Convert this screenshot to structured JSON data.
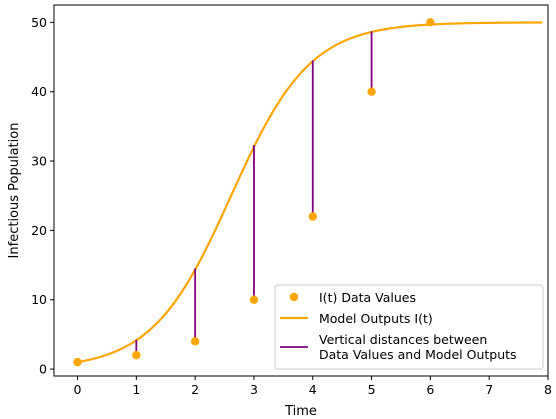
{
  "chart_data": {
    "type": "line",
    "xlabel": "Time",
    "ylabel": "Infectious Population",
    "xlim": [
      -0.4,
      8.0
    ],
    "ylim": [
      -1.0,
      52.5
    ],
    "x_ticks": [
      0,
      1,
      2,
      3,
      4,
      5,
      6,
      7,
      8
    ],
    "y_ticks": [
      0,
      10,
      20,
      30,
      40,
      50
    ],
    "grid": false,
    "legend_position": "lower-right",
    "colors": {
      "data": "#ffa500",
      "model": "#ffa500",
      "residual": "#800080"
    },
    "model": {
      "name": "Model Outputs I(t)",
      "capacity": 50,
      "initial": 1,
      "rate": 1.49,
      "t_range": [
        0,
        7.9
      ]
    },
    "series": [
      {
        "name": "I(t) Data Values",
        "kind": "scatter",
        "x": [
          0,
          1,
          2,
          3,
          4,
          5,
          6
        ],
        "y": [
          1,
          2,
          4,
          10,
          22,
          40,
          50
        ]
      },
      {
        "name": "Vertical distances between\nData Values and Model Outputs",
        "kind": "vlines",
        "x": [
          0,
          1,
          2,
          3,
          4,
          5,
          6
        ],
        "y_data": [
          1,
          2,
          4,
          10,
          22,
          40,
          50
        ],
        "y_model": [
          1.0,
          4.2,
          14.5,
          32.3,
          44.5,
          48.7,
          49.7
        ]
      }
    ],
    "legend": [
      {
        "label": "I(t) Data Values",
        "kind": "marker"
      },
      {
        "label": "Model Outputs I(t)",
        "kind": "line"
      },
      {
        "label": "Vertical distances between",
        "label2": "Data Values and Model Outputs",
        "kind": "vline"
      }
    ]
  }
}
